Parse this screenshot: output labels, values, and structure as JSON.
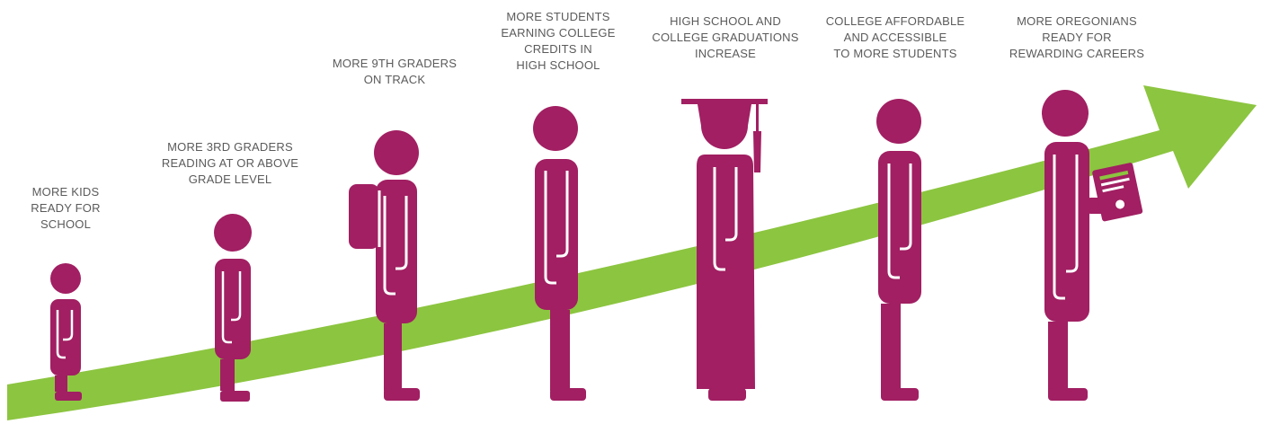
{
  "colors": {
    "arrow": "#8cc540",
    "figure": "#a11f62",
    "diploma_stripe": "#8cc540",
    "caption_text": "#5b5b5b"
  },
  "stages": [
    {
      "lines": [
        "MORE KIDS",
        "READY FOR",
        "SCHOOL"
      ],
      "icon": "small-child-icon"
    },
    {
      "lines": [
        "MORE 3RD GRADERS",
        "READING AT OR ABOVE",
        "GRADE LEVEL"
      ],
      "icon": "child-icon"
    },
    {
      "lines": [
        "MORE 9TH GRADERS",
        "ON TRACK"
      ],
      "icon": "student-with-backpack-icon"
    },
    {
      "lines": [
        "MORE STUDENTS",
        "EARNING COLLEGE",
        "CREDITS IN",
        "HIGH SCHOOL"
      ],
      "icon": "teen-student-icon"
    },
    {
      "lines": [
        "HIGH SCHOOL AND",
        "COLLEGE GRADUATIONS",
        "INCREASE"
      ],
      "icon": "graduate-icon"
    },
    {
      "lines": [
        "COLLEGE AFFORDABLE",
        "AND ACCESSIBLE",
        "TO MORE STUDENTS"
      ],
      "icon": "college-student-icon"
    },
    {
      "lines": [
        "MORE OREGONIANS",
        "READY FOR",
        "REWARDING CAREERS"
      ],
      "icon": "adult-with-diploma-icon"
    }
  ]
}
